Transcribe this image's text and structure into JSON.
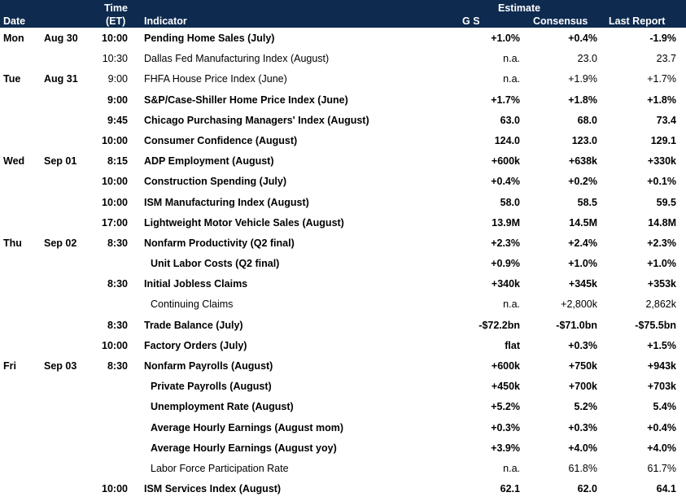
{
  "header": {
    "date": "Date",
    "time_line1": "Time",
    "time_line2": "(ET)",
    "indicator": "Indicator",
    "estimate": "Estimate",
    "gs": "G S",
    "consensus": "Consensus",
    "last_report": "Last Report"
  },
  "rows": [
    {
      "day": "Mon",
      "date": "Aug 30",
      "time": "10:00",
      "indicator": "Pending Home Sales (July)",
      "gs": "+1.0%",
      "consensus": "+0.4%",
      "last": "-1.9%",
      "bold": true,
      "indent": 0
    },
    {
      "day": "",
      "date": "",
      "time": "10:30",
      "indicator": "Dallas Fed Manufacturing Index (August)",
      "gs": "n.a.",
      "consensus": "23.0",
      "last": "23.7",
      "bold": false,
      "indent": 0
    },
    {
      "day": "Tue",
      "date": "Aug 31",
      "time": "9:00",
      "indicator": "FHFA House Price Index (June)",
      "gs": "n.a.",
      "consensus": "+1.9%",
      "last": "+1.7%",
      "bold": false,
      "indent": 0
    },
    {
      "day": "",
      "date": "",
      "time": "9:00",
      "indicator": "S&P/Case-Shiller Home Price Index (June)",
      "gs": "+1.7%",
      "consensus": "+1.8%",
      "last": "+1.8%",
      "bold": true,
      "indent": 0
    },
    {
      "day": "",
      "date": "",
      "time": "9:45",
      "indicator": "Chicago Purchasing Managers' Index (August)",
      "gs": "63.0",
      "consensus": "68.0",
      "last": "73.4",
      "bold": true,
      "indent": 0
    },
    {
      "day": "",
      "date": "",
      "time": "10:00",
      "indicator": "Consumer Confidence (August)",
      "gs": "124.0",
      "consensus": "123.0",
      "last": "129.1",
      "bold": true,
      "indent": 0
    },
    {
      "day": "Wed",
      "date": "Sep 01",
      "time": "8:15",
      "indicator": "ADP Employment (August)",
      "gs": "+600k",
      "consensus": "+638k",
      "last": "+330k",
      "bold": true,
      "indent": 0
    },
    {
      "day": "",
      "date": "",
      "time": "10:00",
      "indicator": "Construction Spending (July)",
      "gs": "+0.4%",
      "consensus": "+0.2%",
      "last": "+0.1%",
      "bold": true,
      "indent": 0
    },
    {
      "day": "",
      "date": "",
      "time": "10:00",
      "indicator": "ISM Manufacturing Index (August)",
      "gs": "58.0",
      "consensus": "58.5",
      "last": "59.5",
      "bold": true,
      "indent": 0
    },
    {
      "day": "",
      "date": "",
      "time": "17:00",
      "indicator": "Lightweight Motor Vehicle Sales (August)",
      "gs": "13.9M",
      "consensus": "14.5M",
      "last": "14.8M",
      "bold": true,
      "indent": 0
    },
    {
      "day": "Thu",
      "date": "Sep 02",
      "time": "8:30",
      "indicator": "Nonfarm Productivity (Q2 final)",
      "gs": "+2.3%",
      "consensus": "+2.4%",
      "last": "+2.3%",
      "bold": true,
      "indent": 0
    },
    {
      "day": "",
      "date": "",
      "time": "",
      "indicator": "Unit Labor Costs (Q2 final)",
      "gs": "+0.9%",
      "consensus": "+1.0%",
      "last": "+1.0%",
      "bold": true,
      "indent": 1
    },
    {
      "day": "",
      "date": "",
      "time": "8:30",
      "indicator": "Initial Jobless Claims",
      "gs": "+340k",
      "consensus": "+345k",
      "last": "+353k",
      "bold": true,
      "indent": 0
    },
    {
      "day": "",
      "date": "",
      "time": "",
      "indicator": "Continuing Claims",
      "gs": "n.a.",
      "consensus": "+2,800k",
      "last": "2,862k",
      "bold": false,
      "indent": 1
    },
    {
      "day": "",
      "date": "",
      "time": "8:30",
      "indicator": "Trade Balance (July)",
      "gs": "-$72.2bn",
      "consensus": "-$71.0bn",
      "last": "-$75.5bn",
      "bold": true,
      "indent": 0
    },
    {
      "day": "",
      "date": "",
      "time": "10:00",
      "indicator": "Factory Orders (July)",
      "gs": "flat",
      "consensus": "+0.3%",
      "last": "+1.5%",
      "bold": true,
      "indent": 0
    },
    {
      "day": "Fri",
      "date": "Sep 03",
      "time": "8:30",
      "indicator": "Nonfarm Payrolls (August)",
      "gs": "+600k",
      "consensus": "+750k",
      "last": "+943k",
      "bold": true,
      "indent": 0
    },
    {
      "day": "",
      "date": "",
      "time": "",
      "indicator": "Private Payrolls (August)",
      "gs": "+450k",
      "consensus": "+700k",
      "last": "+703k",
      "bold": true,
      "indent": 1
    },
    {
      "day": "",
      "date": "",
      "time": "",
      "indicator": "Unemployment Rate (August)",
      "gs": "+5.2%",
      "consensus": "5.2%",
      "last": "5.4%",
      "bold": true,
      "indent": 1
    },
    {
      "day": "",
      "date": "",
      "time": "",
      "indicator": "Average Hourly Earnings (August mom)",
      "gs": "+0.3%",
      "consensus": "+0.3%",
      "last": "+0.4%",
      "bold": true,
      "indent": 1
    },
    {
      "day": "",
      "date": "",
      "time": "",
      "indicator": "Average Hourly Earnings (August yoy)",
      "gs": "+3.9%",
      "consensus": "+4.0%",
      "last": "+4.0%",
      "bold": true,
      "indent": 1
    },
    {
      "day": "",
      "date": "",
      "time": "",
      "indicator": "Labor Force Participation Rate",
      "gs": "n.a.",
      "consensus": "61.8%",
      "last": "61.7%",
      "bold": false,
      "indent": 1
    },
    {
      "day": "",
      "date": "",
      "time": "10:00",
      "indicator": "ISM Services Index (August)",
      "gs": "62.1",
      "consensus": "62.0",
      "last": "64.1",
      "bold": true,
      "indent": 0
    }
  ]
}
